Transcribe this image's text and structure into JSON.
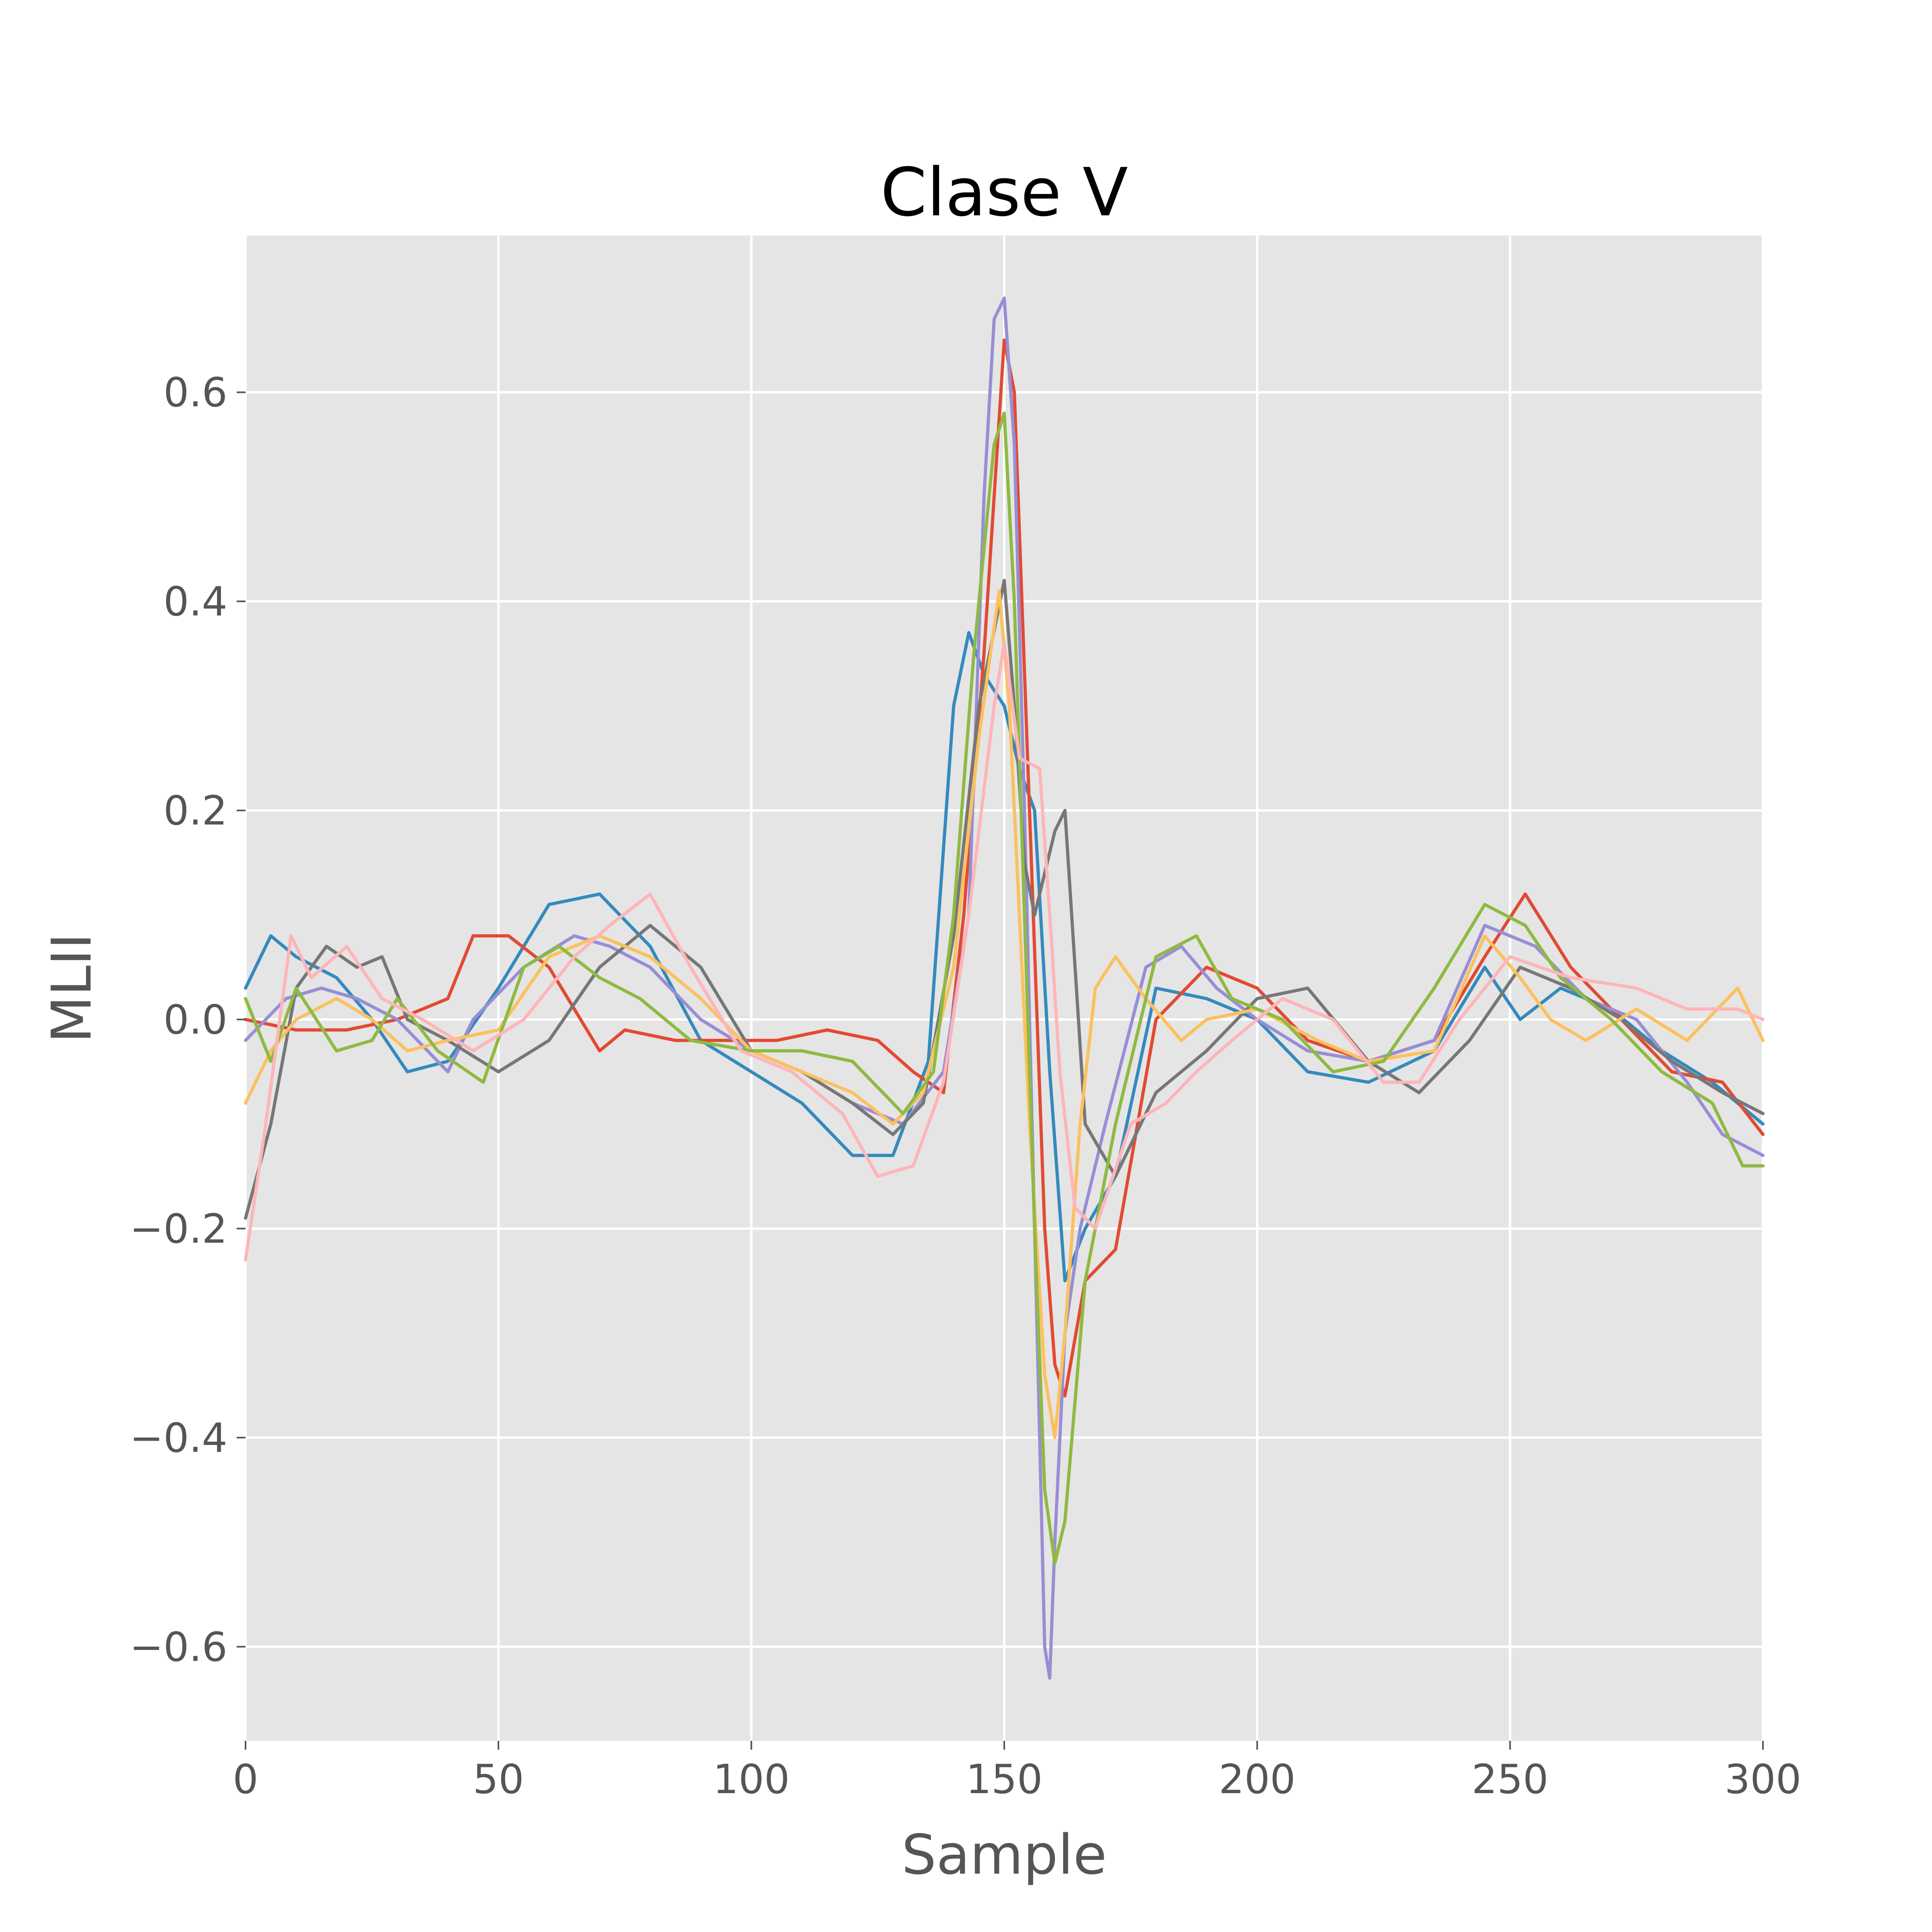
{
  "chart_data": {
    "type": "line",
    "title": "Clase V",
    "xlabel": "Sample",
    "ylabel": "MLII",
    "xlim": [
      0,
      300
    ],
    "ylim": [
      -0.69,
      0.75
    ],
    "xticks": [
      0,
      50,
      100,
      150,
      200,
      250,
      300
    ],
    "yticks": [
      -0.6,
      -0.4,
      -0.2,
      0.0,
      0.2,
      0.4,
      0.6
    ],
    "ytick_labels": [
      "−0.6",
      "−0.4",
      "−0.2",
      "0.0",
      "0.2",
      "0.4",
      "0.6"
    ],
    "grid": true,
    "legend": "none",
    "background": "#e5e5e5",
    "colors": [
      "#348abd",
      "#e24a33",
      "#988ed5",
      "#777777",
      "#fbc15e",
      "#8eba42",
      "#ffb5b8"
    ],
    "series": [
      {
        "color": "#348abd",
        "x": [
          0,
          5,
          10,
          18,
          25,
          32,
          40,
          50,
          60,
          70,
          80,
          90,
          100,
          110,
          120,
          128,
          135,
          140,
          143,
          146,
          150,
          153,
          156,
          159,
          162,
          166,
          172,
          180,
          190,
          200,
          210,
          222,
          235,
          245,
          252,
          260,
          270,
          280,
          290,
          300
        ],
        "y": [
          0.03,
          0.08,
          0.06,
          0.04,
          0.0,
          -0.05,
          -0.04,
          0.03,
          0.11,
          0.12,
          0.07,
          -0.02,
          -0.05,
          -0.08,
          -0.13,
          -0.13,
          -0.04,
          0.3,
          0.37,
          0.33,
          0.3,
          0.24,
          0.2,
          -0.05,
          -0.25,
          -0.2,
          -0.15,
          0.03,
          0.02,
          0.0,
          -0.05,
          -0.06,
          -0.03,
          0.05,
          0.0,
          0.03,
          0.01,
          -0.03,
          -0.06,
          -0.1
        ]
      },
      {
        "color": "#e24a33",
        "x": [
          0,
          10,
          20,
          30,
          40,
          45,
          52,
          60,
          70,
          75,
          85,
          95,
          105,
          115,
          125,
          132,
          138,
          142,
          146,
          150,
          152,
          155,
          158,
          160,
          162,
          166,
          172,
          180,
          190,
          200,
          210,
          222,
          235,
          245,
          253,
          262,
          272,
          282,
          292,
          300
        ],
        "y": [
          0.0,
          -0.01,
          -0.01,
          0.0,
          0.02,
          0.08,
          0.08,
          0.05,
          -0.03,
          -0.01,
          -0.02,
          -0.02,
          -0.02,
          -0.01,
          -0.02,
          -0.05,
          -0.07,
          0.1,
          0.35,
          0.65,
          0.6,
          0.2,
          -0.2,
          -0.33,
          -0.36,
          -0.25,
          -0.22,
          0.0,
          0.05,
          0.03,
          -0.02,
          -0.04,
          -0.02,
          0.06,
          0.12,
          0.05,
          0.0,
          -0.05,
          -0.06,
          -0.11
        ]
      },
      {
        "color": "#988ed5",
        "x": [
          0,
          8,
          15,
          22,
          30,
          40,
          45,
          55,
          65,
          72,
          80,
          90,
          100,
          110,
          120,
          130,
          138,
          143,
          146,
          148,
          150,
          152,
          154,
          156,
          158,
          159,
          160,
          162,
          165,
          170,
          178,
          185,
          192,
          200,
          210,
          222,
          235,
          245,
          255,
          265,
          275,
          285,
          292,
          300
        ],
        "y": [
          -0.02,
          0.02,
          0.03,
          0.02,
          0.0,
          -0.05,
          0.0,
          0.05,
          0.08,
          0.07,
          0.05,
          0.0,
          -0.03,
          -0.05,
          -0.08,
          -0.1,
          -0.05,
          0.1,
          0.5,
          0.67,
          0.69,
          0.55,
          0.2,
          -0.2,
          -0.6,
          -0.63,
          -0.5,
          -0.3,
          -0.2,
          -0.1,
          0.05,
          0.07,
          0.03,
          0.0,
          -0.03,
          -0.04,
          -0.02,
          0.09,
          0.07,
          0.02,
          0.0,
          -0.06,
          -0.11,
          -0.13
        ]
      },
      {
        "color": "#777777",
        "x": [
          0,
          5,
          10,
          16,
          22,
          27,
          32,
          40,
          50,
          60,
          70,
          80,
          90,
          100,
          110,
          120,
          128,
          134,
          140,
          145,
          150,
          152,
          154,
          156,
          160,
          162,
          166,
          172,
          180,
          190,
          200,
          210,
          222,
          232,
          242,
          252,
          262,
          272,
          282,
          292,
          300
        ],
        "y": [
          -0.19,
          -0.1,
          0.03,
          0.07,
          0.05,
          0.06,
          0.0,
          -0.02,
          -0.05,
          -0.02,
          0.05,
          0.09,
          0.05,
          -0.03,
          -0.05,
          -0.08,
          -0.11,
          -0.08,
          0.08,
          0.3,
          0.42,
          0.3,
          0.15,
          0.1,
          0.18,
          0.2,
          -0.1,
          -0.15,
          -0.07,
          -0.03,
          0.02,
          0.03,
          -0.04,
          -0.07,
          -0.02,
          0.05,
          0.03,
          0.0,
          -0.04,
          -0.07,
          -0.09
        ]
      },
      {
        "color": "#fbc15e",
        "x": [
          0,
          5,
          10,
          18,
          25,
          32,
          40,
          50,
          60,
          70,
          80,
          90,
          100,
          110,
          120,
          128,
          134,
          140,
          145,
          149,
          151,
          153,
          155,
          158,
          160,
          162,
          165,
          168,
          172,
          178,
          185,
          190,
          200,
          212,
          222,
          235,
          245,
          252,
          258,
          265,
          275,
          285,
          295,
          300
        ],
        "y": [
          -0.08,
          -0.03,
          0.0,
          0.02,
          0.0,
          -0.03,
          -0.02,
          -0.01,
          0.06,
          0.08,
          0.06,
          0.02,
          -0.03,
          -0.05,
          -0.07,
          -0.1,
          -0.07,
          0.05,
          0.27,
          0.41,
          0.3,
          0.1,
          -0.1,
          -0.34,
          -0.4,
          -0.3,
          -0.1,
          0.03,
          0.06,
          0.02,
          -0.02,
          0.0,
          0.01,
          -0.02,
          -0.04,
          -0.03,
          0.08,
          0.04,
          0.0,
          -0.02,
          0.01,
          -0.02,
          0.03,
          -0.02
        ]
      },
      {
        "color": "#8eba42",
        "x": [
          0,
          5,
          10,
          18,
          25,
          30,
          38,
          47,
          55,
          62,
          70,
          78,
          88,
          100,
          110,
          120,
          130,
          136,
          140,
          144,
          148,
          150,
          152,
          154,
          156,
          158,
          160,
          162,
          166,
          172,
          180,
          188,
          195,
          205,
          215,
          225,
          235,
          245,
          253,
          260,
          270,
          280,
          290,
          296,
          300
        ],
        "y": [
          0.02,
          -0.04,
          0.03,
          -0.03,
          -0.02,
          0.02,
          -0.03,
          -0.06,
          0.05,
          0.07,
          0.04,
          0.02,
          -0.02,
          -0.03,
          -0.03,
          -0.04,
          -0.09,
          -0.05,
          0.1,
          0.35,
          0.55,
          0.58,
          0.4,
          0.1,
          -0.2,
          -0.45,
          -0.52,
          -0.48,
          -0.25,
          -0.1,
          0.06,
          0.08,
          0.02,
          0.0,
          -0.05,
          -0.04,
          0.03,
          0.11,
          0.09,
          0.04,
          0.0,
          -0.05,
          -0.08,
          -0.14,
          -0.14
        ]
      },
      {
        "color": "#ffb5b8",
        "x": [
          0,
          4,
          9,
          13,
          20,
          27,
          35,
          45,
          55,
          65,
          72,
          80,
          88,
          98,
          108,
          118,
          125,
          132,
          138,
          143,
          148,
          150,
          153,
          157,
          159,
          161,
          164,
          168,
          175,
          182,
          188,
          195,
          205,
          215,
          225,
          232,
          240,
          250,
          262,
          275,
          285,
          295,
          300
        ],
        "y": [
          -0.23,
          -0.1,
          0.08,
          0.04,
          0.07,
          0.02,
          0.0,
          -0.03,
          0.0,
          0.06,
          0.09,
          0.12,
          0.05,
          -0.03,
          -0.05,
          -0.09,
          -0.15,
          -0.14,
          -0.06,
          0.1,
          0.3,
          0.36,
          0.25,
          0.24,
          0.1,
          -0.05,
          -0.18,
          -0.2,
          -0.1,
          -0.08,
          -0.05,
          -0.02,
          0.02,
          0.0,
          -0.06,
          -0.06,
          0.0,
          0.06,
          0.04,
          0.03,
          0.01,
          0.01,
          0.0
        ]
      }
    ]
  }
}
